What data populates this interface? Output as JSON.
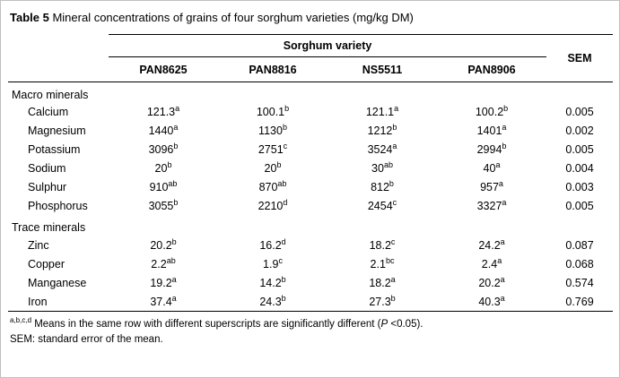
{
  "caption": {
    "label": "Table 5",
    "text": " Mineral concentrations of grains of four sorghum varieties (mg/kg DM)"
  },
  "header": {
    "group_label": "Sorghum variety",
    "varieties": [
      "PAN8625",
      "PAN8816",
      "NS5511",
      "PAN8906"
    ],
    "sem_label": "SEM"
  },
  "sections": [
    {
      "name": "Macro minerals",
      "rows": [
        {
          "label": "Calcium",
          "values": [
            {
              "v": "121.3",
              "s": "a"
            },
            {
              "v": "100.1",
              "s": "b"
            },
            {
              "v": "121.1",
              "s": "a"
            },
            {
              "v": "100.2",
              "s": "b"
            }
          ],
          "sem": "0.005"
        },
        {
          "label": "Magnesium",
          "values": [
            {
              "v": "1440",
              "s": "a"
            },
            {
              "v": "1130",
              "s": "b"
            },
            {
              "v": "1212",
              "s": "b"
            },
            {
              "v": "1401",
              "s": "a"
            }
          ],
          "sem": "0.002"
        },
        {
          "label": "Potassium",
          "values": [
            {
              "v": "3096",
              "s": "b"
            },
            {
              "v": "2751",
              "s": "c"
            },
            {
              "v": "3524",
              "s": "a"
            },
            {
              "v": "2994",
              "s": "b"
            }
          ],
          "sem": "0.005"
        },
        {
          "label": "Sodium",
          "values": [
            {
              "v": "20",
              "s": "b"
            },
            {
              "v": "20",
              "s": "b"
            },
            {
              "v": "30",
              "s": "ab"
            },
            {
              "v": "40",
              "s": "a"
            }
          ],
          "sem": "0.004"
        },
        {
          "label": "Sulphur",
          "values": [
            {
              "v": "910",
              "s": "ab"
            },
            {
              "v": "870",
              "s": "ab"
            },
            {
              "v": "812",
              "s": "b"
            },
            {
              "v": "957",
              "s": "a"
            }
          ],
          "sem": "0.003"
        },
        {
          "label": "Phosphorus",
          "values": [
            {
              "v": "3055",
              "s": "b"
            },
            {
              "v": "2210",
              "s": "d"
            },
            {
              "v": "2454",
              "s": "c"
            },
            {
              "v": "3327",
              "s": "a"
            }
          ],
          "sem": "0.005"
        }
      ]
    },
    {
      "name": "Trace minerals",
      "rows": [
        {
          "label": "Zinc",
          "values": [
            {
              "v": "20.2",
              "s": "b"
            },
            {
              "v": "16.2",
              "s": "d"
            },
            {
              "v": "18.2",
              "s": "c"
            },
            {
              "v": "24.2",
              "s": "a"
            }
          ],
          "sem": "0.087"
        },
        {
          "label": "Copper",
          "values": [
            {
              "v": "2.2",
              "s": "ab"
            },
            {
              "v": "1.9",
              "s": "c"
            },
            {
              "v": "2.1",
              "s": "bc"
            },
            {
              "v": "2.4",
              "s": "a"
            }
          ],
          "sem": "0.068"
        },
        {
          "label": "Manganese",
          "values": [
            {
              "v": "19.2",
              "s": "a"
            },
            {
              "v": "14.2",
              "s": "b"
            },
            {
              "v": "18.2",
              "s": "a"
            },
            {
              "v": "20.2",
              "s": "a"
            }
          ],
          "sem": "0.574"
        },
        {
          "label": "Iron",
          "values": [
            {
              "v": "37.4",
              "s": "a"
            },
            {
              "v": "24.3",
              "s": "b"
            },
            {
              "v": "27.3",
              "s": "b"
            },
            {
              "v": "40.3",
              "s": "a"
            }
          ],
          "sem": "0.769"
        }
      ]
    }
  ],
  "footnotes": {
    "significance": {
      "sup": "a,b,c,d",
      "before": " Means in the same row with different superscripts are significantly different (",
      "p": "P",
      "after": " <0.05)."
    },
    "sem": "SEM: standard error of the mean."
  }
}
